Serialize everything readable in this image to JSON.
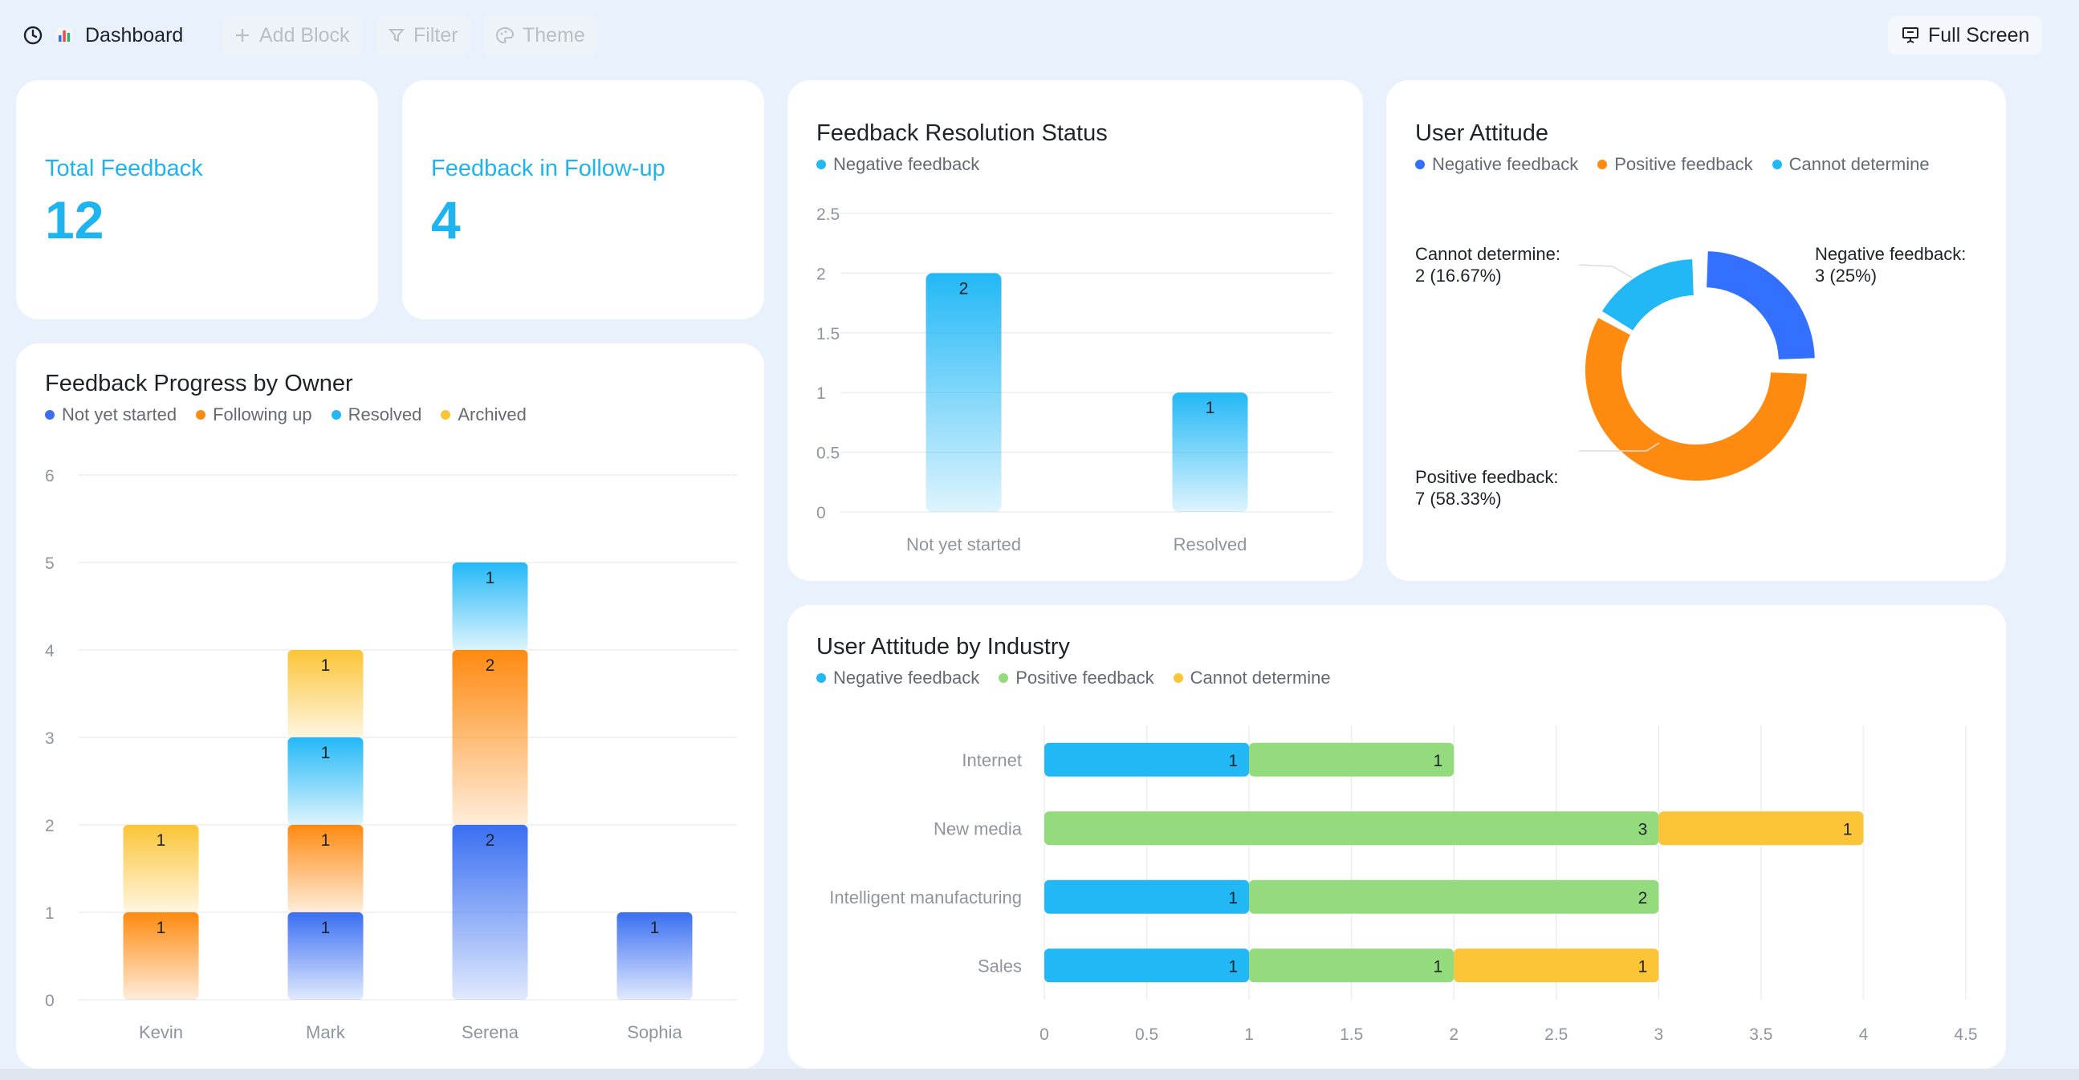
{
  "toolbar": {
    "dashboard_label": "Dashboard",
    "add_block_label": "Add Block",
    "filter_label": "Filter",
    "theme_label": "Theme",
    "full_screen_label": "Full Screen"
  },
  "kpis": {
    "total": {
      "label": "Total Feedback",
      "value": "12"
    },
    "followup": {
      "label": "Feedback in Follow-up",
      "value": "4"
    }
  },
  "colors": {
    "dark_blue": "#3a6ff2",
    "orange": "#ff8a10",
    "cyan": "#22b8f6",
    "yellow": "#fcc537",
    "green": "#93db7c",
    "donut_blue": "#3470ff"
  },
  "chart_data": [
    {
      "id": "resolution",
      "type": "bar",
      "title": "Feedback Resolution Status",
      "legend": [
        {
          "name": "Negative feedback",
          "color": "#22b8f6"
        }
      ],
      "categories": [
        "Not yet started",
        "Resolved"
      ],
      "values": [
        2,
        1
      ],
      "ylim": [
        0,
        2.5
      ],
      "yticks": [
        "0",
        "0.5",
        "1",
        "1.5",
        "2",
        "2.5"
      ],
      "grid": true
    },
    {
      "id": "attitude",
      "type": "pie",
      "title": "User Attitude",
      "legend": [
        {
          "name": "Negative feedback",
          "color": "#3470ff"
        },
        {
          "name": "Positive feedback",
          "color": "#ff8a10"
        },
        {
          "name": "Cannot determine",
          "color": "#22b8f6"
        }
      ],
      "slices": [
        {
          "name": "Negative feedback",
          "value": 3,
          "percent": "25%",
          "color": "#3470ff",
          "label_line1": "Negative feedback:",
          "label_line2": "3 (25%)"
        },
        {
          "name": "Positive feedback",
          "value": 7,
          "percent": "58.33%",
          "color": "#ff8a10",
          "label_line1": "Positive feedback:",
          "label_line2": "7 (58.33%)"
        },
        {
          "name": "Cannot determine",
          "value": 2,
          "percent": "16.67%",
          "color": "#22b8f6",
          "label_line1": "Cannot determine:",
          "label_line2": "2 (16.67%)"
        }
      ]
    },
    {
      "id": "owner",
      "type": "bar",
      "stacked": true,
      "title": "Feedback Progress by Owner",
      "legend": [
        {
          "name": "Not yet started",
          "color": "#3a6ff2"
        },
        {
          "name": "Following up",
          "color": "#ff8a10"
        },
        {
          "name": "Resolved",
          "color": "#22b8f6"
        },
        {
          "name": "Archived",
          "color": "#fcc537"
        }
      ],
      "categories": [
        "Kevin",
        "Mark",
        "Serena",
        "Sophia"
      ],
      "series": [
        {
          "name": "Not yet started",
          "color": "#3a6ff2",
          "values": [
            0,
            1,
            2,
            1
          ]
        },
        {
          "name": "Following up",
          "color": "#ff8a10",
          "values": [
            1,
            1,
            2,
            0
          ]
        },
        {
          "name": "Resolved",
          "color": "#22b8f6",
          "values": [
            0,
            1,
            1,
            0
          ]
        },
        {
          "name": "Archived",
          "color": "#fcc537",
          "values": [
            1,
            1,
            0,
            0
          ]
        }
      ],
      "ylim": [
        0,
        6
      ],
      "yticks": [
        "0",
        "1",
        "2",
        "3",
        "4",
        "5",
        "6"
      ],
      "grid": true
    },
    {
      "id": "industry",
      "type": "bar",
      "orientation": "horizontal",
      "stacked": true,
      "title": "User Attitude by Industry",
      "legend": [
        {
          "name": "Negative feedback",
          "color": "#22b8f6"
        },
        {
          "name": "Positive feedback",
          "color": "#93db7c"
        },
        {
          "name": "Cannot determine",
          "color": "#fcc537"
        }
      ],
      "categories": [
        "Internet",
        "New media",
        "Intelligent manufacturing",
        "Sales"
      ],
      "series": [
        {
          "name": "Negative feedback",
          "color": "#22b8f6",
          "values": [
            1,
            0,
            1,
            1
          ]
        },
        {
          "name": "Positive feedback",
          "color": "#93db7c",
          "values": [
            1,
            3,
            2,
            1
          ]
        },
        {
          "name": "Cannot determine",
          "color": "#fcc537",
          "values": [
            0,
            1,
            0,
            1
          ]
        }
      ],
      "xlim": [
        0,
        4.5
      ],
      "xticks": [
        "0",
        "0.5",
        "1",
        "1.5",
        "2",
        "2.5",
        "3",
        "3.5",
        "4",
        "4.5"
      ],
      "grid": true
    }
  ]
}
